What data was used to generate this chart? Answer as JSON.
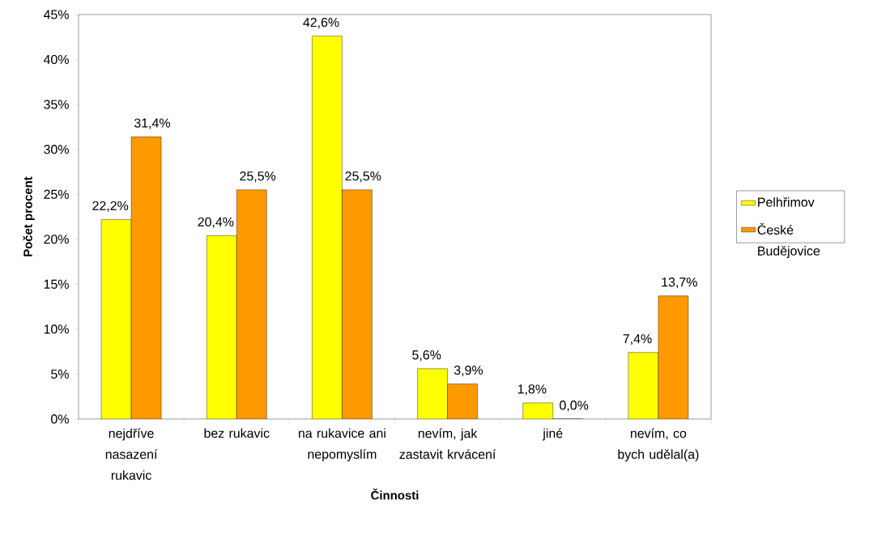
{
  "chart_data": {
    "type": "bar",
    "xlabel": "Činnosti",
    "ylabel": "Počet procent",
    "categories": [
      "nejdříve nasazení rukavic",
      "bez rukavic",
      "na rukavice ani nepomyslím",
      "nevím, jak zastavit krvácení",
      "jiné",
      "nevím, co bych udělal(a)"
    ],
    "series": [
      {
        "name": "Pelhřimov",
        "color": "#ffff00",
        "values": [
          22.2,
          20.4,
          42.6,
          5.6,
          1.8,
          7.4
        ],
        "value_labels": [
          "22,2%",
          "20,4%",
          "42,6%",
          "5,6%",
          "1,8%",
          "7,4%"
        ]
      },
      {
        "name": "České Budějovice",
        "color": "#ff9900",
        "values": [
          31.4,
          25.5,
          25.5,
          3.9,
          0.0,
          13.7
        ],
        "value_labels": [
          "31,4%",
          "25,5%",
          "25,5%",
          "3,9%",
          "0,0%",
          "13,7%"
        ]
      }
    ],
    "ylim": [
      0,
      45
    ],
    "yticks": [
      {
        "value": 0,
        "label": "0%"
      },
      {
        "value": 5,
        "label": "5%"
      },
      {
        "value": 10,
        "label": "10%"
      },
      {
        "value": 15,
        "label": "15%"
      },
      {
        "value": 20,
        "label": "20%"
      },
      {
        "value": 25,
        "label": "25%"
      },
      {
        "value": 30,
        "label": "30%"
      },
      {
        "value": 35,
        "label": "35%"
      },
      {
        "value": 40,
        "label": "40%"
      },
      {
        "value": 45,
        "label": "45%"
      }
    ],
    "legend": "right"
  }
}
